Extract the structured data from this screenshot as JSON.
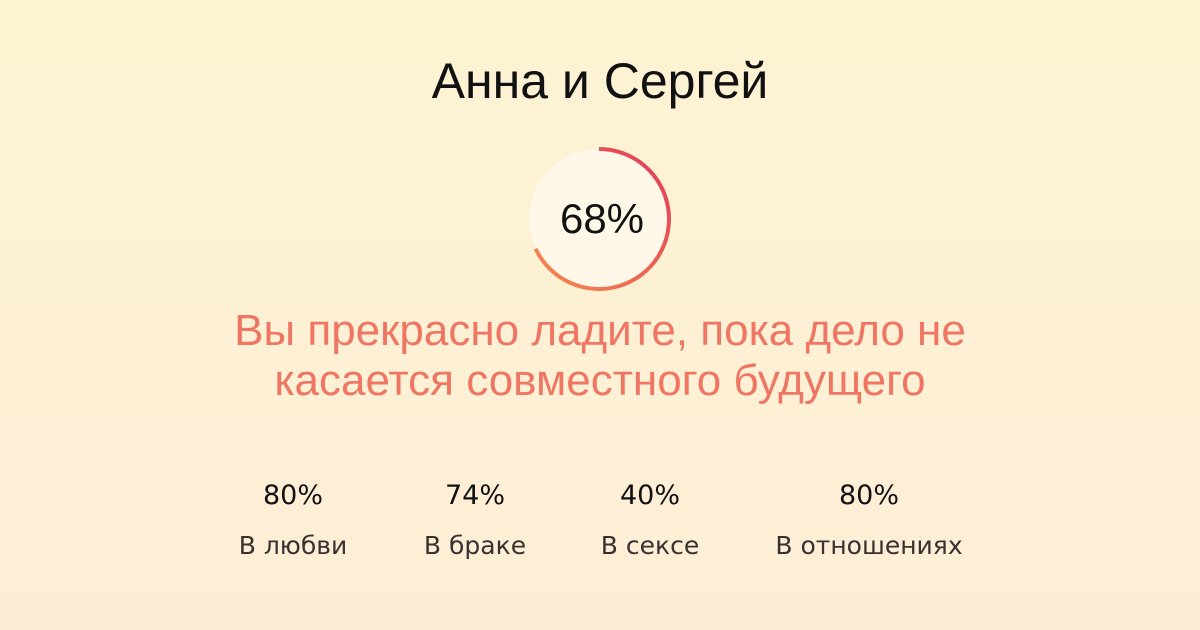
{
  "title": "Анна и Сергей",
  "score": {
    "label": "68%",
    "percent": 68,
    "gradient_start": "#e03c5a",
    "gradient_end": "#f58a4f",
    "fill": "#fff8e8"
  },
  "message": "Вы прекрасно ладите, пока дело не касается совместного будущего",
  "stats": [
    {
      "value": "80%",
      "label": "В любви"
    },
    {
      "value": "74%",
      "label": "В браке"
    },
    {
      "value": "40%",
      "label": "В сексе"
    },
    {
      "value": "80%",
      "label": "В отношениях"
    }
  ]
}
